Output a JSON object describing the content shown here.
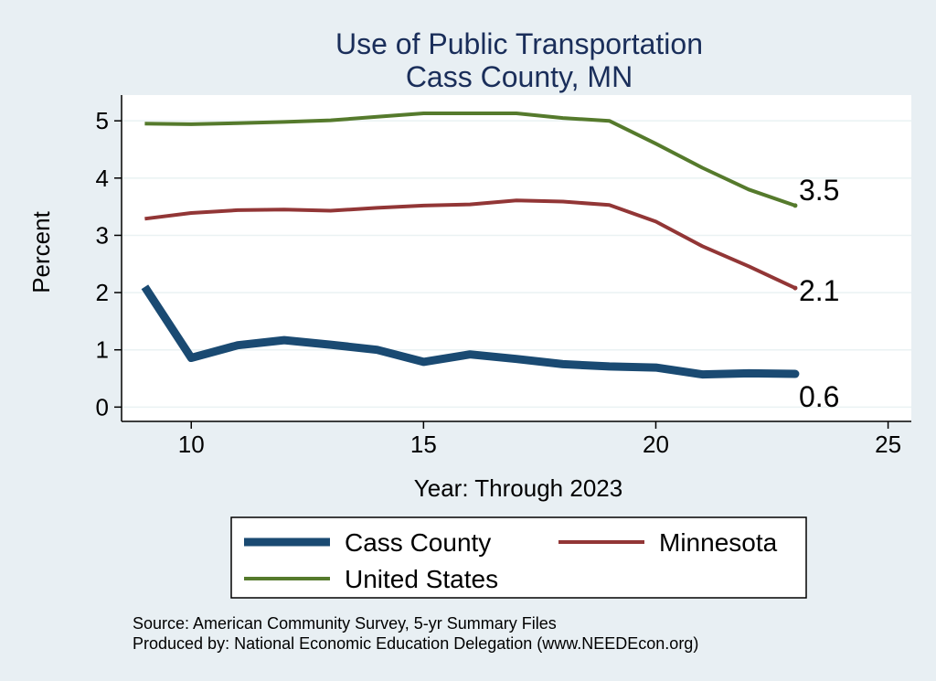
{
  "chart_data": {
    "type": "line",
    "title": [
      "Use of Public Transportation",
      "Cass County, MN"
    ],
    "xlabel": "Year: Through 2023",
    "ylabel": "Percent",
    "xlim": [
      8.5,
      25.5
    ],
    "ylim": [
      -0.25,
      5.45
    ],
    "xticks": [
      10,
      15,
      20,
      25
    ],
    "yticks": [
      0,
      1,
      2,
      3,
      4,
      5
    ],
    "grid": "horizontal",
    "legend_position": "bottom",
    "series": [
      {
        "name": "Cass County",
        "color": "#1a4a72",
        "width": 9,
        "x": [
          9,
          10,
          11,
          12,
          13,
          14,
          15,
          16,
          17,
          18,
          19,
          20,
          21,
          22,
          23
        ],
        "y": [
          2.1,
          0.86,
          1.08,
          1.17,
          1.09,
          1.0,
          0.79,
          0.92,
          0.84,
          0.75,
          0.71,
          0.69,
          0.57,
          0.59,
          0.58
        ],
        "end_label": "0.6"
      },
      {
        "name": "Minnesota",
        "color": "#923636",
        "width": 4,
        "x": [
          9,
          10,
          11,
          12,
          13,
          14,
          15,
          16,
          17,
          18,
          19,
          20,
          21,
          22,
          23
        ],
        "y": [
          3.29,
          3.39,
          3.44,
          3.45,
          3.43,
          3.48,
          3.52,
          3.54,
          3.61,
          3.59,
          3.53,
          3.24,
          2.81,
          2.46,
          2.08
        ],
        "end_label": "2.1"
      },
      {
        "name": "United States",
        "color": "#557a2c",
        "width": 4,
        "x": [
          9,
          10,
          11,
          12,
          13,
          14,
          15,
          16,
          17,
          18,
          19,
          20,
          21,
          22,
          23
        ],
        "y": [
          4.95,
          4.94,
          4.96,
          4.98,
          5.01,
          5.07,
          5.13,
          5.13,
          5.13,
          5.05,
          5.0,
          4.6,
          4.18,
          3.8,
          3.52
        ],
        "end_label": "3.5"
      }
    ],
    "notes": [
      "Source: American Community Survey, 5-yr Summary Files",
      "Produced by: National Economic Education Delegation (www.NEEDEcon.org)"
    ]
  }
}
